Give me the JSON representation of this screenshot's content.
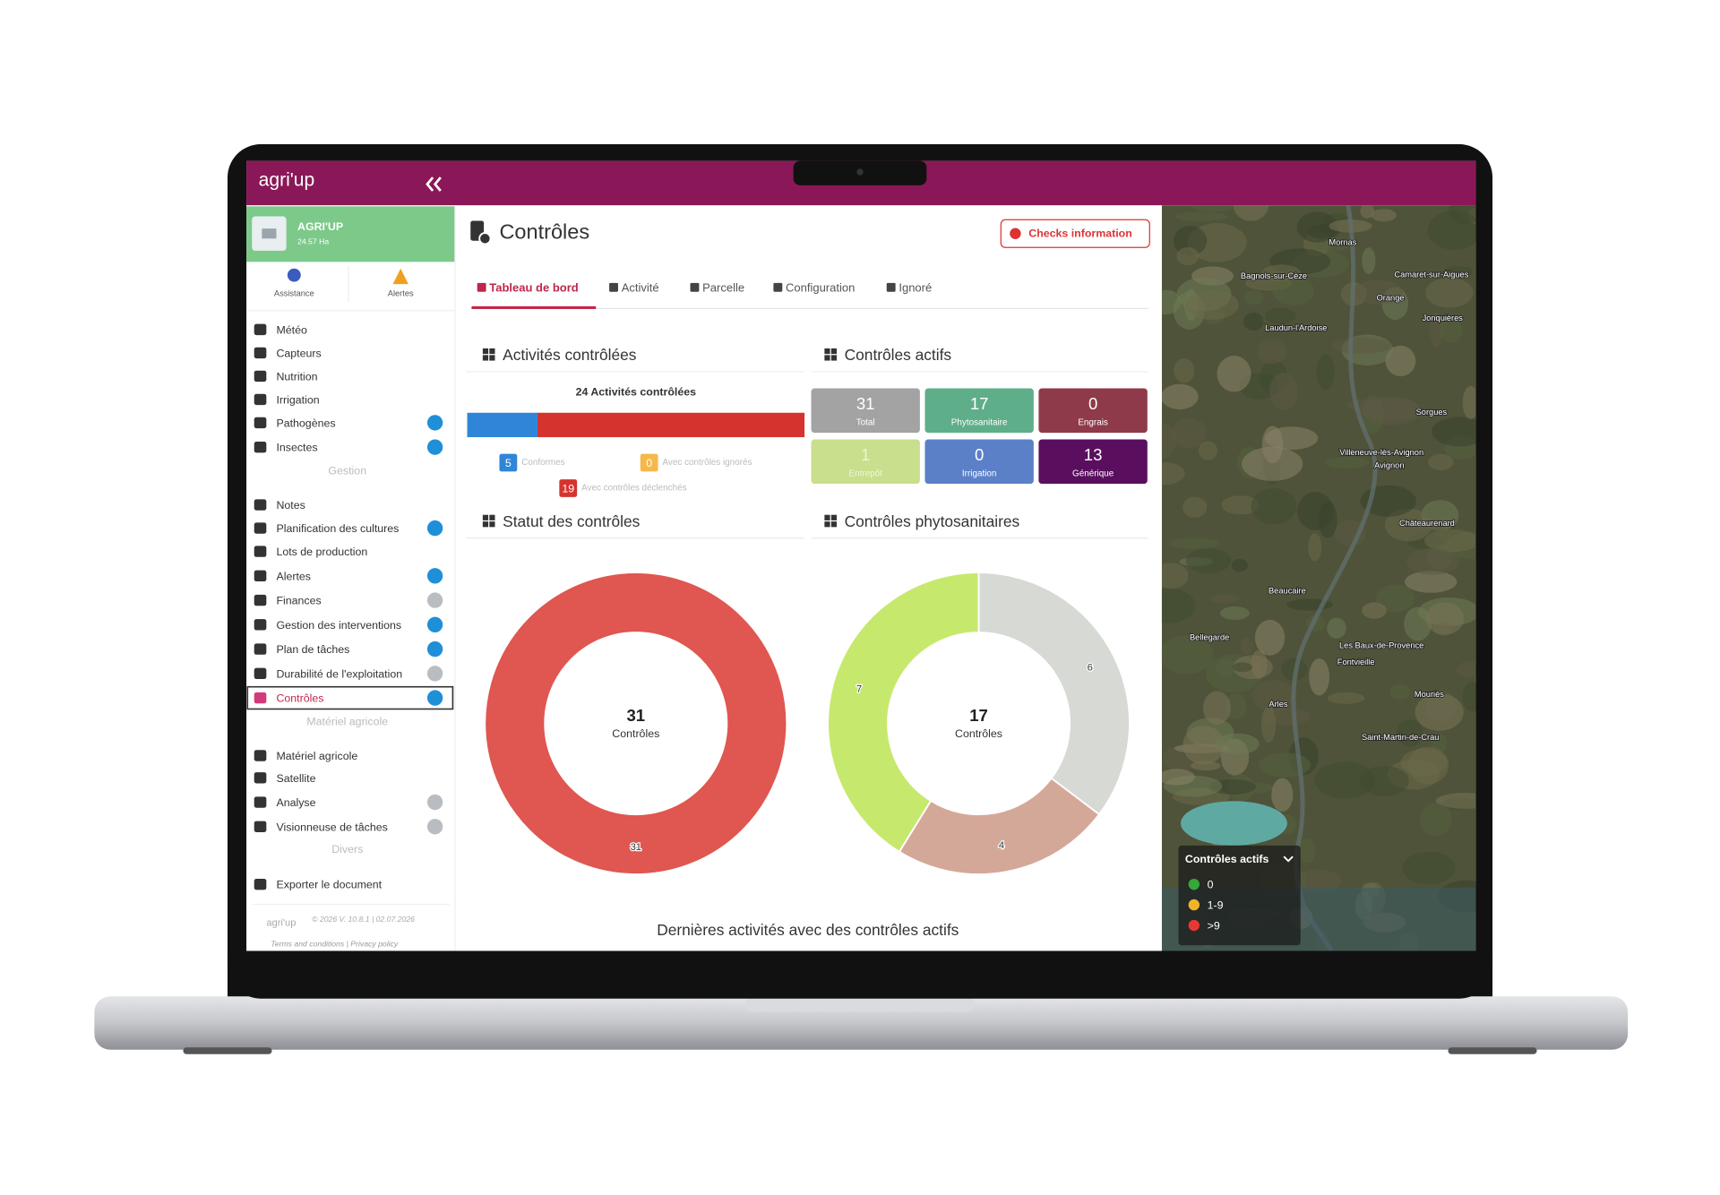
{
  "header": {
    "logo": "agri'up"
  },
  "farm": {
    "name": "AGRI'UP",
    "area": "24.57 Ha"
  },
  "quick_links": [
    "Assistance",
    "Alertes"
  ],
  "menu": [
    {
      "label": "Météo"
    },
    {
      "label": "Capteurs"
    },
    {
      "label": "Nutrition"
    },
    {
      "label": "Irrigation"
    },
    {
      "label": "Pathogènes",
      "badge": "pro"
    },
    {
      "label": "Insectes",
      "badge": "pro"
    },
    {
      "section": "Gestion"
    },
    {
      "label": "Notes"
    },
    {
      "label": "Planification des cultures",
      "badge": "pro"
    },
    {
      "label": "Lots de production"
    },
    {
      "label": "Alertes",
      "badge": "pro"
    },
    {
      "label": "Finances",
      "badge": "pro-off"
    },
    {
      "label": "Gestion des interventions",
      "badge": "pro"
    },
    {
      "label": "Plan de tâches",
      "badge": "pro"
    },
    {
      "label": "Durabilité de l'exploitation",
      "badge": "pro-off"
    },
    {
      "label": "Contrôles",
      "badge": "pro",
      "active": true
    },
    {
      "section": "Matériel agricole"
    },
    {
      "label": "Matériel agricole"
    },
    {
      "label": "Satellite"
    },
    {
      "label": "Analyse",
      "badge": "pro-off"
    },
    {
      "label": "Visionneuse de tâches",
      "badge": "pro-off"
    },
    {
      "section": "Divers"
    },
    {
      "label": "Exporter le document"
    }
  ],
  "sidebar_footer": {
    "version": "© 2026 V. 10.8.1 | 02.07.2026",
    "links": "Terms and conditions | Privacy policy"
  },
  "page": {
    "title": "Contrôles",
    "button": "Checks information",
    "tabs": [
      "Tableau de bord",
      "Activité",
      "Parcelle",
      "Configuration",
      "Ignoré"
    ],
    "active_tab": 0
  },
  "activities": {
    "heading": "Activités contrôlées",
    "title": "24 Activités contrôlées",
    "segments": [
      {
        "label": "Conformes",
        "value": 5,
        "color": "#2f86d9"
      },
      {
        "label": "Avec contrôles ignorés",
        "value": 0,
        "color": "#f5b94a"
      },
      {
        "label": "Avec contrôles déclenchés",
        "value": 19,
        "color": "#d5342e"
      }
    ]
  },
  "active_controls": {
    "heading": "Contrôles actifs",
    "cards": [
      {
        "value": 31,
        "label": "Total",
        "color": "#a3a3a3",
        "text_color": "#ffffff"
      },
      {
        "value": 17,
        "label": "Phytosanitaire",
        "color": "#5fae8a",
        "text_color": "#ffffff"
      },
      {
        "value": 0,
        "label": "Engrais",
        "color": "#8e3a4a",
        "text_color": "#ffffff"
      },
      {
        "value": 1,
        "label": "Entrepôt",
        "color": "#c8df8e",
        "text_color": "#eef6d8"
      },
      {
        "value": 0,
        "label": "Irrigation",
        "color": "#5b80c8",
        "text_color": "#ffffff"
      },
      {
        "value": 13,
        "label": "Générique",
        "color": "#5a0f5e",
        "text_color": "#ffffff"
      }
    ]
  },
  "charts": [
    {
      "type": "donut",
      "title": "Statut des contrôles",
      "center_value": 31,
      "center_label": "Contrôles",
      "segments": [
        {
          "value": 0,
          "color": "#8fbf6a"
        },
        {
          "value": 31,
          "color": "#e05650"
        }
      ]
    },
    {
      "type": "donut",
      "title": "Contrôles phytosanitaires",
      "center_value": 17,
      "center_label": "Contrôles",
      "segments": [
        {
          "value": 6,
          "color": "#d7d9d4"
        },
        {
          "value": 4,
          "color": "#d4a898"
        },
        {
          "value": 7,
          "color": "#c6e96d"
        }
      ]
    }
  ],
  "latest": {
    "title": "Dernières activités avec des contrôles actifs"
  },
  "map": {
    "legend_title": "Contrôles actifs",
    "legend": [
      {
        "label": "0",
        "color": "#35a83a"
      },
      {
        "label": "1-9",
        "color": "#f0b429"
      },
      {
        "label": ">9",
        "color": "#e53935"
      }
    ],
    "places": [
      "Mornas",
      "Bagnols-sur-Cèze",
      "Camaret-sur-Aigues",
      "Orange",
      "Laudun-l'Ardoise",
      "Jonquières",
      "Sorgues",
      "Villeneuve-lès-Avignon",
      "Avignon",
      "Châteaurenard",
      "Beaucaire",
      "Bellegarde",
      "Les Baux-de-Provence",
      "Fontvieille",
      "Arles",
      "Saint-Martin-de-Crau",
      "Mouriès"
    ]
  }
}
